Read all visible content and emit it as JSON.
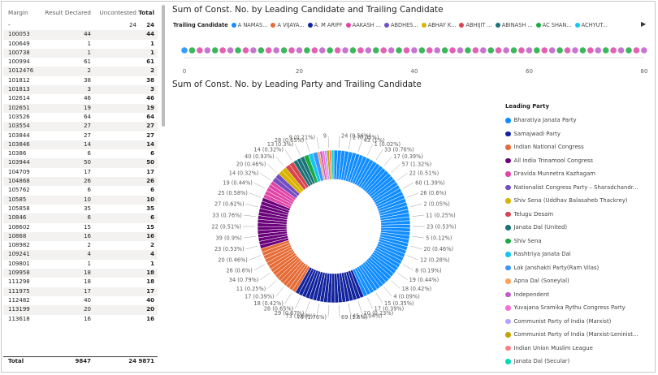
{
  "matrix": {
    "headers": [
      "Margin",
      "Result Declared",
      "Uncontested",
      "Total"
    ],
    "rows": [
      [
        "-",
        "",
        "24",
        "24"
      ],
      [
        "100053",
        "44",
        "",
        "44"
      ],
      [
        "100649",
        "1",
        "",
        "1"
      ],
      [
        "100738",
        "1",
        "",
        "1"
      ],
      [
        "100994",
        "61",
        "",
        "61"
      ],
      [
        "1012476",
        "2",
        "",
        "2"
      ],
      [
        "101812",
        "38",
        "",
        "38"
      ],
      [
        "101813",
        "3",
        "",
        "3"
      ],
      [
        "102614",
        "46",
        "",
        "46"
      ],
      [
        "102651",
        "19",
        "",
        "19"
      ],
      [
        "103526",
        "64",
        "",
        "64"
      ],
      [
        "103554",
        "27",
        "",
        "27"
      ],
      [
        "103844",
        "27",
        "",
        "27"
      ],
      [
        "103846",
        "14",
        "",
        "14"
      ],
      [
        "10386",
        "6",
        "",
        "6"
      ],
      [
        "103944",
        "50",
        "",
        "50"
      ],
      [
        "104709",
        "17",
        "",
        "17"
      ],
      [
        "104868",
        "26",
        "",
        "26"
      ],
      [
        "105762",
        "6",
        "",
        "6"
      ],
      [
        "10585",
        "10",
        "",
        "10"
      ],
      [
        "105858",
        "35",
        "",
        "35"
      ],
      [
        "10846",
        "6",
        "",
        "6"
      ],
      [
        "108602",
        "15",
        "",
        "15"
      ],
      [
        "10868",
        "16",
        "",
        "16"
      ],
      [
        "108982",
        "2",
        "",
        "2"
      ],
      [
        "109241",
        "4",
        "",
        "4"
      ],
      [
        "109801",
        "1",
        "",
        "1"
      ],
      [
        "109958",
        "18",
        "",
        "18"
      ],
      [
        "111298",
        "18",
        "",
        "18"
      ],
      [
        "111975",
        "17",
        "",
        "17"
      ],
      [
        "112482",
        "40",
        "",
        "40"
      ],
      [
        "113199",
        "20",
        "",
        "20"
      ],
      [
        "113618",
        "16",
        "",
        "16"
      ]
    ],
    "total": [
      "Total",
      "9847",
      "24",
      "9871"
    ]
  },
  "scatter": {
    "title": "Sum of Const. No. by Leading Candidate and Trailing Candidate",
    "legend_title": "Trailing Candidate",
    "legend_items": [
      {
        "label": "A NAMAS...",
        "color": "#118dff"
      },
      {
        "label": "A VIJAYA...",
        "color": "#e66c37"
      },
      {
        "label": "A. M ARIFF",
        "color": "#12239e"
      },
      {
        "label": "AAKASH ...",
        "color": "#e044a7"
      },
      {
        "label": "ABDHES...",
        "color": "#744ec2"
      },
      {
        "label": "ABHAY K...",
        "color": "#d9b300"
      },
      {
        "label": "ABHIJIT ...",
        "color": "#d64550"
      },
      {
        "label": "ABINASH ...",
        "color": "#197278"
      },
      {
        "label": "AC SHAN...",
        "color": "#1aab40"
      },
      {
        "label": "ACHYUT...",
        "color": "#15c6f4"
      }
    ],
    "axis_ticks": [
      "0",
      "20",
      "40",
      "60",
      "80"
    ],
    "xlim": [
      0,
      80
    ]
  },
  "donut": {
    "title": "Sum of Const. No. by Leading Party and Trailing Candidate",
    "legend_title": "Leading Party",
    "parties": [
      {
        "name": "Bharatiya Janata Party",
        "color": "#118dff"
      },
      {
        "name": "Samajwadi Party",
        "color": "#12239e"
      },
      {
        "name": "Indian National Congress",
        "color": "#e66c37"
      },
      {
        "name": "All India Trinamool Congress",
        "color": "#6b007b"
      },
      {
        "name": "Dravida Munnetra Kazhagam",
        "color": "#e044a7"
      },
      {
        "name": "Nationalist Congress Party – Sharadchandr...",
        "color": "#744ec2"
      },
      {
        "name": "Shiv Sena (Uddhav Balasaheb Thackrey)",
        "color": "#d9b300"
      },
      {
        "name": "Telugu Desam",
        "color": "#d64550"
      },
      {
        "name": "Janata Dal (United)",
        "color": "#197278"
      },
      {
        "name": "Shiv Sena",
        "color": "#1aab40"
      },
      {
        "name": "Rashtriya Janata Dal",
        "color": "#15c6f4"
      },
      {
        "name": "Lok Janshakti Party(Ram Vilas)",
        "color": "#4092ff"
      },
      {
        "name": "Apna Dal (Soneylal)",
        "color": "#ffa058"
      },
      {
        "name": "Independent",
        "color": "#be5dc9"
      },
      {
        "name": "Yuvajana Sramika Rythu Congress Party",
        "color": "#f472d0"
      },
      {
        "name": "Communist Party of India (Marxist)",
        "color": "#b5a1ff"
      },
      {
        "name": "Communist Party of India (Marxist-Leninist...",
        "color": "#c4a200"
      },
      {
        "name": "Indian Union Muslim League",
        "color": "#ff8080"
      },
      {
        "name": "Janata Dal (Secular)",
        "color": "#00dbbc"
      }
    ]
  },
  "chart_data": {
    "type": "pie",
    "title": "Sum of Const. No. by Leading Party and Trailing Candidate",
    "legend_title": "Leading Party",
    "slice_labels": [
      {
        "value": 24,
        "pct": "0.56%"
      },
      {
        "value": 2,
        "pct": "0.05%"
      },
      {
        "value": 43,
        "pct": "1%"
      },
      {
        "value": 1,
        "pct": "0.02%"
      },
      {
        "value": 33,
        "pct": "0.76%"
      },
      {
        "value": 17,
        "pct": "0.39%"
      },
      {
        "value": 57,
        "pct": "1.32%"
      },
      {
        "value": 22,
        "pct": "0.51%"
      },
      {
        "value": 60,
        "pct": "1.39%"
      },
      {
        "value": 26,
        "pct": "0.6%"
      },
      {
        "value": 2,
        "pct": "0.05%"
      },
      {
        "value": 11,
        "pct": "0.25%"
      },
      {
        "value": 23,
        "pct": "0.53%"
      },
      {
        "value": 5,
        "pct": "0.12%"
      },
      {
        "value": 20,
        "pct": "0.46%"
      },
      {
        "value": 12,
        "pct": "0.28%"
      },
      {
        "value": 8,
        "pct": "0.19%"
      },
      {
        "value": 19,
        "pct": "0.44%"
      },
      {
        "value": 18,
        "pct": "0.42%"
      },
      {
        "value": 4,
        "pct": "0.09%"
      },
      {
        "value": 15,
        "pct": "0.35%"
      },
      {
        "value": 17,
        "pct": "0.39%"
      },
      {
        "value": 10,
        "pct": "0.23%"
      },
      {
        "value": 45,
        "pct": "1.04%"
      },
      {
        "value": 69,
        "pct": "1.6%"
      },
      {
        "value": 76,
        "pct": "1.76%"
      },
      {
        "value": 73,
        "pct": "1.69%"
      },
      {
        "value": 29,
        "pct": "0.67%"
      },
      {
        "value": 28,
        "pct": "0.65%"
      },
      {
        "value": 18,
        "pct": "0.42%"
      },
      {
        "value": 17,
        "pct": "0.39%"
      },
      {
        "value": 11,
        "pct": "0.25%"
      },
      {
        "value": 34,
        "pct": "0.79%"
      },
      {
        "value": 26,
        "pct": "0.6%"
      },
      {
        "value": 20,
        "pct": "0.46%"
      },
      {
        "value": 23,
        "pct": "0.53%"
      },
      {
        "value": 39,
        "pct": "0.9%"
      },
      {
        "value": 22,
        "pct": "0.51%"
      },
      {
        "value": 33,
        "pct": "0.76%"
      },
      {
        "value": 27,
        "pct": "0.62%"
      },
      {
        "value": 25,
        "pct": "0.58%"
      },
      {
        "value": 19,
        "pct": "0.44%"
      },
      {
        "value": 14,
        "pct": "0.32%"
      },
      {
        "value": 20,
        "pct": "0.46%"
      },
      {
        "value": 40,
        "pct": "0.93%"
      },
      {
        "value": 14,
        "pct": "0.32%"
      },
      {
        "value": 13,
        "pct": "0.3%"
      },
      {
        "value": 28,
        "pct": "0.65%"
      },
      {
        "value": 9,
        "pct": "0.21%"
      },
      {
        "value": 9,
        "pct": ""
      }
    ],
    "party_shares": [
      0.44,
      0.15,
      0.12,
      0.11,
      0.04,
      0.02,
      0.02,
      0.02,
      0.025,
      0.01,
      0.01,
      0.01,
      0.005,
      0.005,
      0.005,
      0.005,
      0.005,
      0.005,
      0.005
    ]
  }
}
